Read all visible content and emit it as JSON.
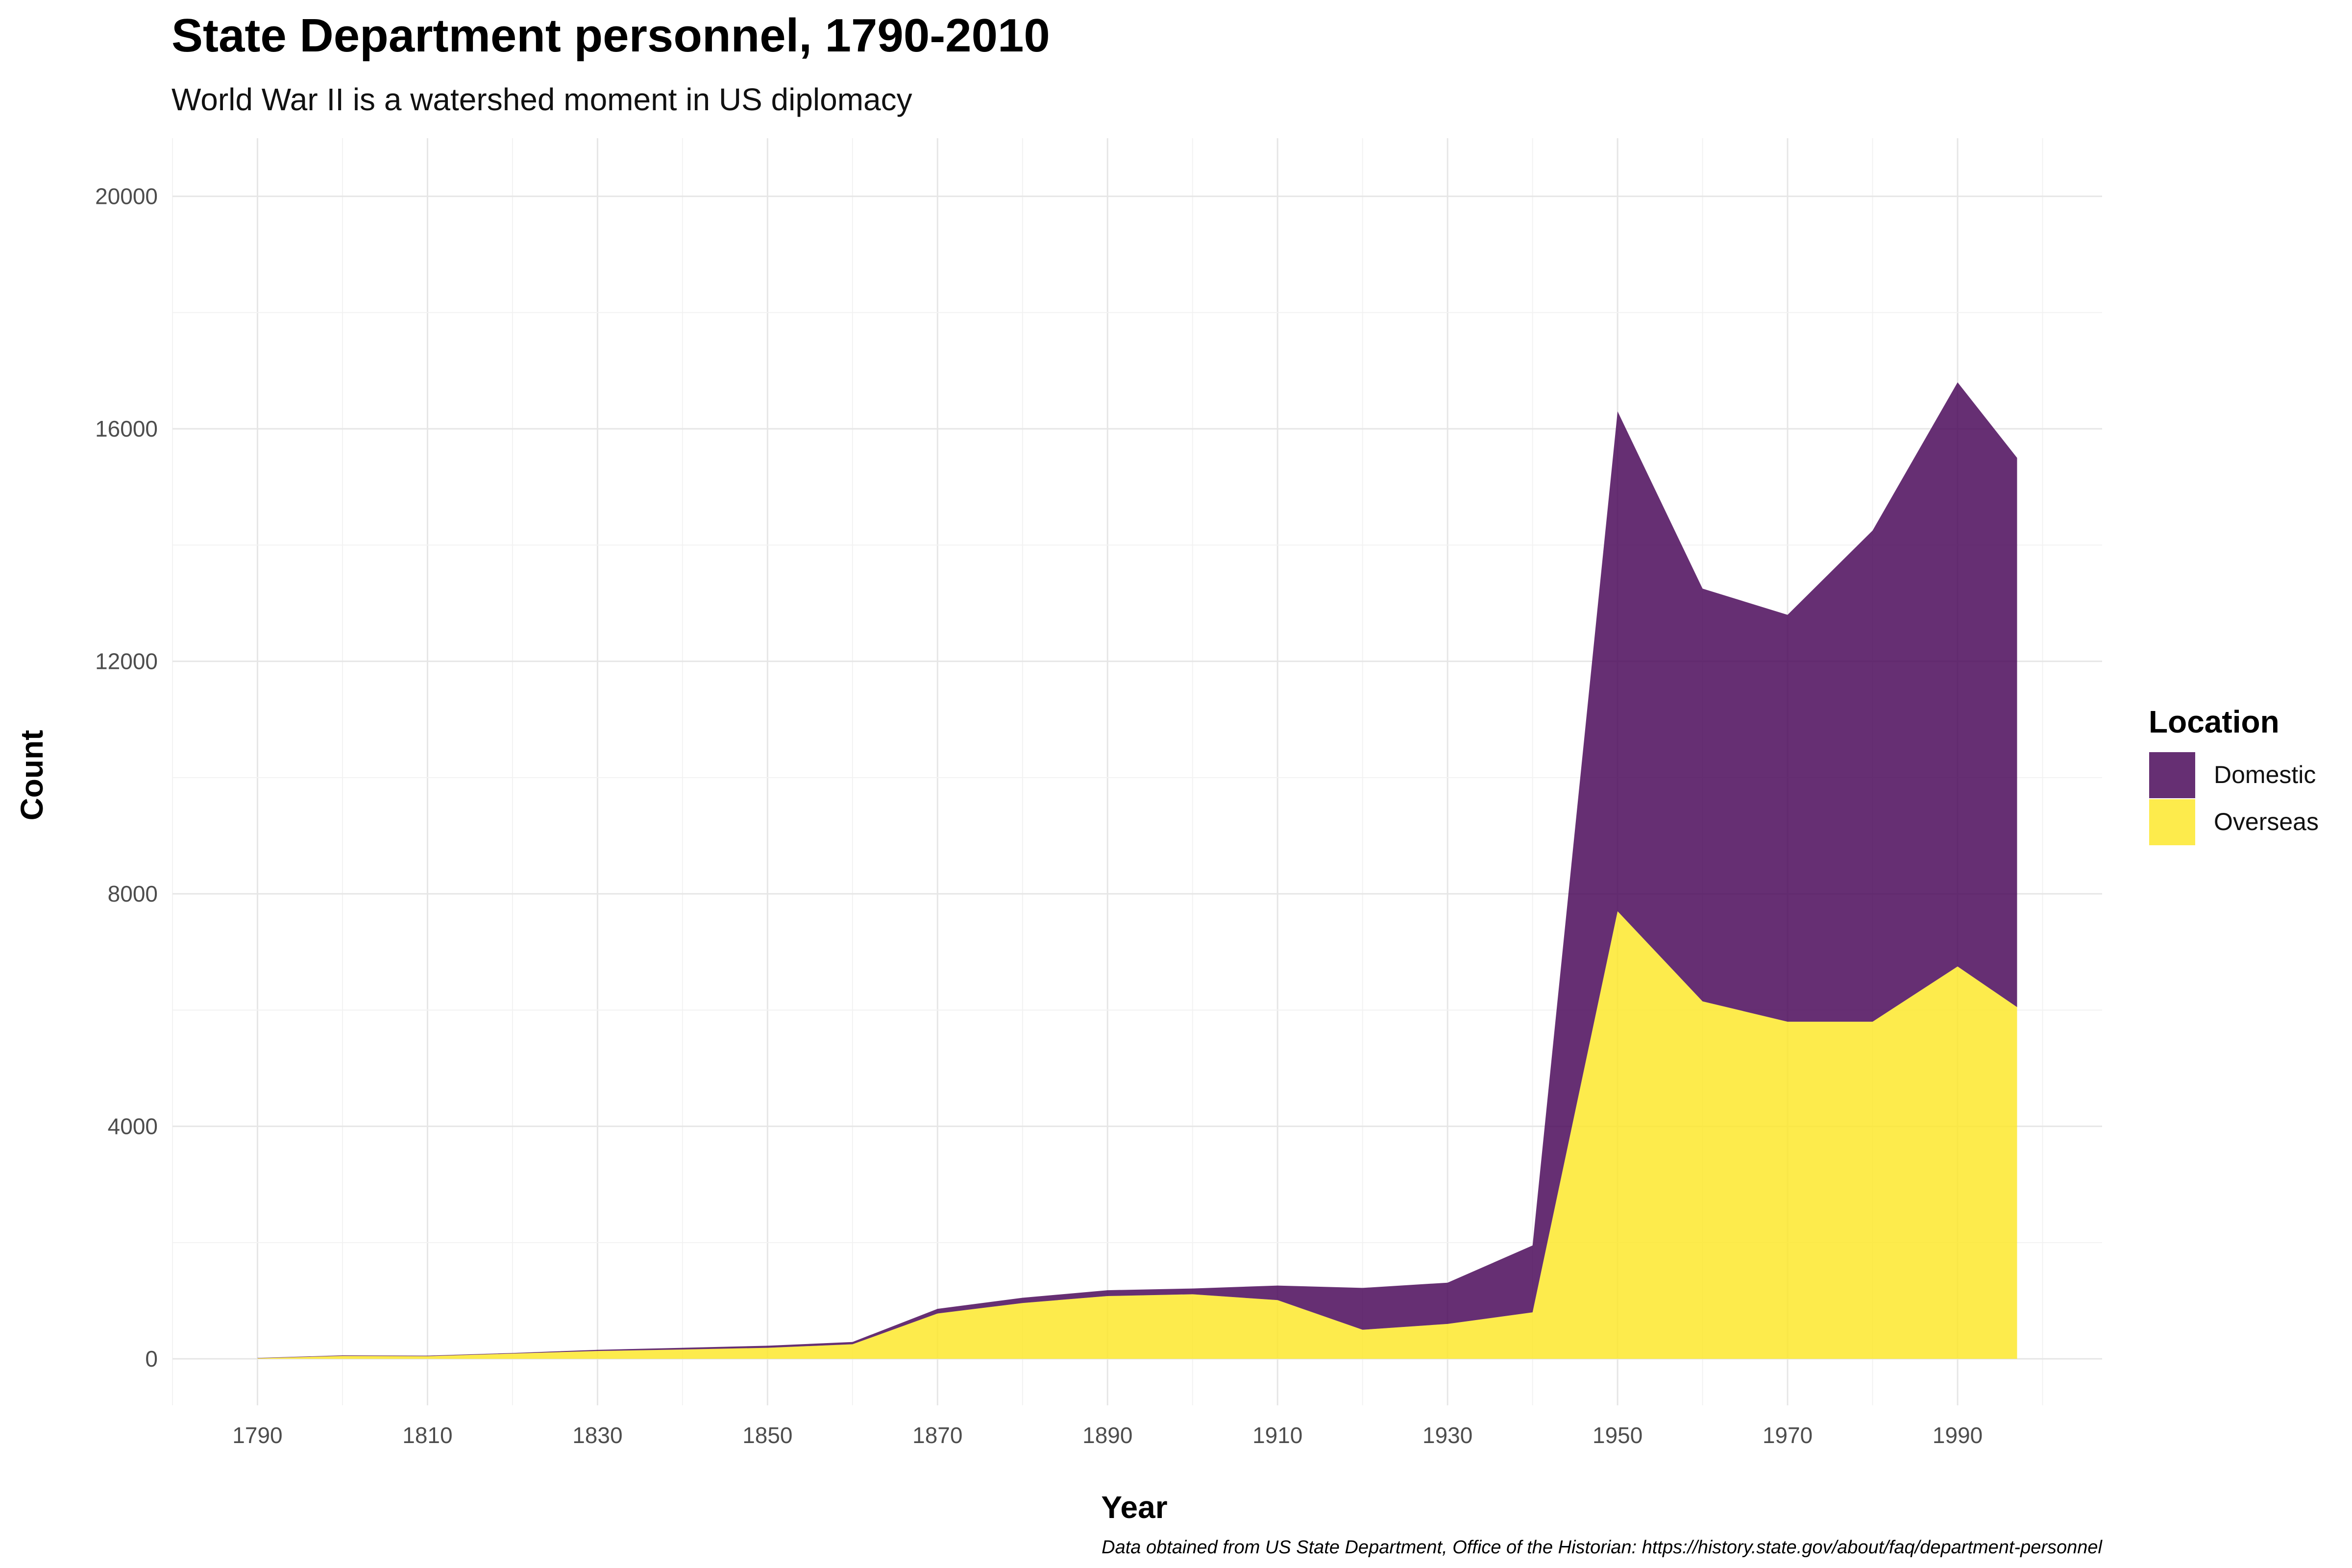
{
  "chart_data": {
    "type": "area",
    "stacked": true,
    "title": "State Department personnel, 1790-2010",
    "subtitle": "World War II is a watershed moment in US diplomacy",
    "xlabel": "Year",
    "ylabel": "Count",
    "caption": "Data obtained from US State Department, Office of the Historian: https://history.state.gov/about/faq/department-personnel",
    "x": [
      1790,
      1800,
      1810,
      1820,
      1830,
      1840,
      1850,
      1860,
      1870,
      1880,
      1890,
      1900,
      1910,
      1920,
      1930,
      1940,
      1950,
      1960,
      1970,
      1980,
      1990,
      1997
    ],
    "series": [
      {
        "name": "Overseas",
        "color": "#FDE725",
        "values": [
          10,
          50,
          45,
          90,
          135,
          160,
          190,
          250,
          780,
          960,
          1080,
          1110,
          1010,
          500,
          600,
          800,
          7700,
          6150,
          5800,
          5800,
          6750,
          6050
        ]
      },
      {
        "name": "Domestic",
        "color": "#440154",
        "values": [
          5,
          10,
          10,
          10,
          20,
          30,
          35,
          40,
          80,
          90,
          100,
          100,
          250,
          720,
          710,
          1150,
          8600,
          7100,
          7000,
          8450,
          10050,
          9450
        ]
      }
    ],
    "xlim": [
      1780,
      2007
    ],
    "ylim": [
      -800,
      21000
    ],
    "x_ticks": [
      1790,
      1810,
      1830,
      1850,
      1870,
      1890,
      1910,
      1930,
      1950,
      1970,
      1990
    ],
    "y_ticks": [
      0,
      4000,
      8000,
      12000,
      16000,
      20000
    ],
    "grid": true,
    "legend": {
      "title": "Location",
      "placement": "right",
      "items": [
        {
          "label": "Domestic",
          "color": "#440154"
        },
        {
          "label": "Overseas",
          "color": "#FDE725"
        }
      ]
    }
  }
}
